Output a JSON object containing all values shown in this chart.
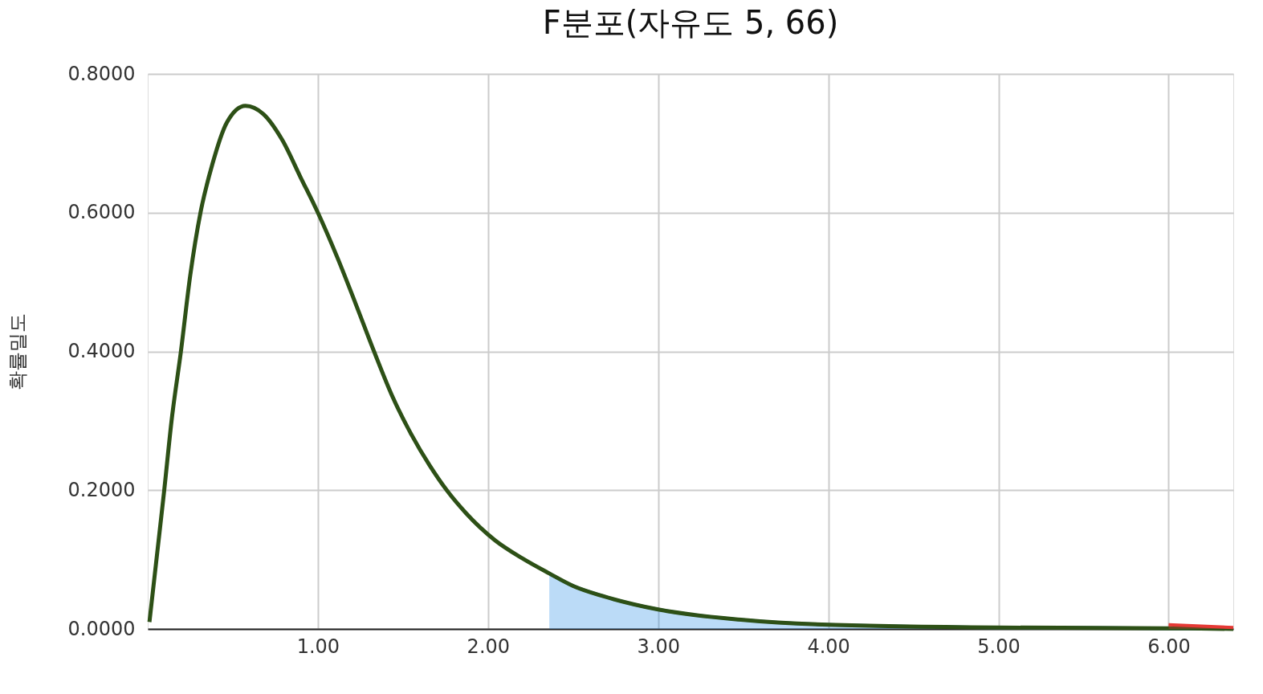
{
  "chart_data": {
    "type": "line",
    "title": "F분포(자유도 5, 66)",
    "ylabel": "확률밀도",
    "xlim": [
      0,
      6.38
    ],
    "ylim": [
      0,
      0.8
    ],
    "xticks": [
      {
        "value": 1,
        "label": "1.00"
      },
      {
        "value": 2,
        "label": "2.00"
      },
      {
        "value": 3,
        "label": "3.00"
      },
      {
        "value": 4,
        "label": "4.00"
      },
      {
        "value": 5,
        "label": "5.00"
      },
      {
        "value": 6,
        "label": "6.00"
      }
    ],
    "yticks": [
      {
        "value": 0,
        "label": "0.0000"
      },
      {
        "value": 0.2,
        "label": "0.2000"
      },
      {
        "value": 0.4,
        "label": "0.4000"
      },
      {
        "value": 0.6,
        "label": "0.6000"
      },
      {
        "value": 0.8,
        "label": "0.8000"
      }
    ],
    "grid": true,
    "marker": "none",
    "line_style": "solid",
    "series": [
      {
        "type": "area",
        "color": "#1e88e5",
        "x": [
          2.36,
          2.5,
          2.68,
          3.0,
          3.5,
          4.0,
          5.0,
          6.0,
          6.38
        ],
        "values": [
          0.08,
          0.062,
          0.047,
          0.028,
          0.013,
          0.006,
          0.002,
          0.001,
          0.0
        ]
      },
      {
        "color": "#2d5016",
        "x": [
          0.01,
          0.054,
          0.097,
          0.14,
          0.195,
          0.25,
          0.31,
          0.38,
          0.465,
          0.574,
          0.68,
          0.79,
          0.9,
          1.0,
          1.115,
          1.22,
          1.33,
          1.44,
          1.55,
          1.656,
          1.76,
          1.87,
          2.04,
          2.2,
          2.36,
          2.5,
          2.68,
          3.0,
          3.5,
          4.0,
          5.0,
          6.0,
          6.38
        ],
        "values": [
          0.01,
          0.106,
          0.2,
          0.3,
          0.4,
          0.51,
          0.6,
          0.67,
          0.73,
          0.754,
          0.742,
          0.705,
          0.65,
          0.6,
          0.535,
          0.47,
          0.4,
          0.334,
          0.28,
          0.236,
          0.199,
          0.167,
          0.128,
          0.102,
          0.08,
          0.062,
          0.047,
          0.028,
          0.013,
          0.006,
          0.002,
          0.001,
          0.0
        ]
      },
      {
        "type": "area",
        "color": "#e53935",
        "x": [
          6.0,
          6.38
        ],
        "values": [
          0.006,
          0.002
        ]
      }
    ]
  }
}
